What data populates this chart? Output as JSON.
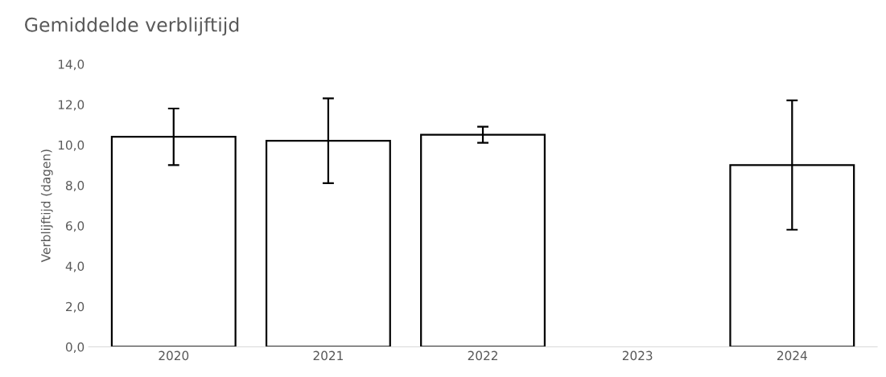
{
  "chart_data": {
    "type": "bar",
    "title": "Gemiddelde verblijftijd",
    "ylabel": "Verblijftijd (dagen)",
    "categories": [
      "2020",
      "2021",
      "2022",
      "2023",
      "2024"
    ],
    "series": [
      {
        "color": "#ffffff",
        "values": [
          10.4,
          10.2,
          10.5,
          null,
          9.0
        ],
        "errors": [
          1.4,
          2.1,
          0.4,
          null,
          3.2
        ]
      }
    ],
    "ylim": [
      0,
      14
    ],
    "yticks": [
      {
        "value": 0,
        "label": "0,0"
      },
      {
        "value": 2,
        "label": "2,0"
      },
      {
        "value": 4,
        "label": "4,0"
      },
      {
        "value": 6,
        "label": "6,0"
      },
      {
        "value": 8,
        "label": "8,0"
      },
      {
        "value": 10,
        "label": "10,0"
      },
      {
        "value": 12,
        "label": "12,0"
      },
      {
        "value": 14,
        "label": "14,0"
      }
    ],
    "grid": false,
    "legend": false
  }
}
